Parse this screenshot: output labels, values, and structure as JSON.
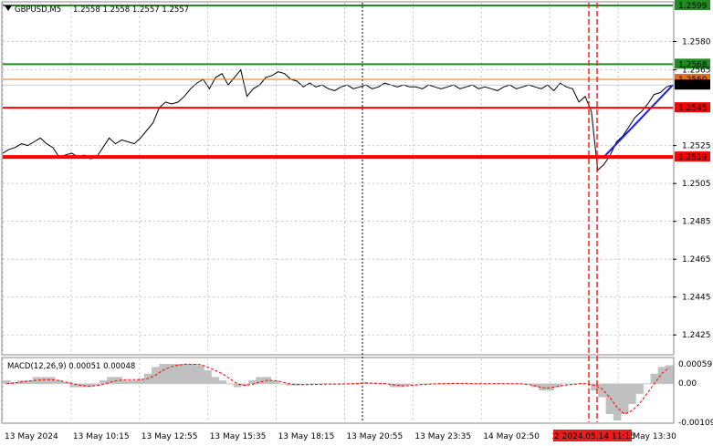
{
  "header": {
    "symbol_label": "GBPUSD,M5",
    "ohlc_label": "1.2558 1.2558 1.2557 1.2557"
  },
  "macd": {
    "label": "MACD(12,26,9) 0.00051 0.00048",
    "scale_top": "0.00059",
    "scale_zero": "0.00",
    "scale_bottom": "-0.00109",
    "histogram_color": "#c0c0c0",
    "signal_color": "#ff0000",
    "histogram": [
      0.0001,
      5e-05,
      0.0001,
      0.0001,
      0.0002,
      0.0002,
      0.0002,
      0.0001,
      5e-05,
      -0.0001,
      -0.0001,
      -0.0001,
      -5e-05,
      0.0001,
      0.0002,
      0.0002,
      0.0001,
      0.0001,
      0.00015,
      0.0003,
      0.0005,
      0.00059,
      0.00059,
      0.00059,
      0.00059,
      0.00059,
      0.00055,
      0.0004,
      0.0002,
      0.0001,
      0.0,
      -0.0001,
      -5e-05,
      0.0001,
      0.0002,
      0.0002,
      0.0001,
      0.0,
      -5e-05,
      -5e-05,
      -2e-05,
      0.0,
      0.0,
      0.0,
      -2e-05,
      0.0,
      0.0,
      2e-05,
      5e-05,
      2e-05,
      0.0,
      0.0,
      -0.0001,
      -0.0001,
      -5e-05,
      0.0,
      0.0,
      0.0,
      0.0,
      2e-05,
      2e-05,
      2e-05,
      0.0,
      0.0,
      0.0,
      0.0,
      2e-05,
      0.0,
      0.0,
      0.0,
      0.0,
      -0.0001,
      -0.0002,
      -0.0002,
      -0.0001,
      0.0,
      0.0,
      0.0,
      0.0,
      -0.0002,
      -0.0004,
      -0.0009,
      -0.00109,
      -0.0009,
      -0.0006,
      -0.0003,
      0.0,
      0.0003,
      0.0005,
      0.00055
    ],
    "signal": [
      0.0,
      2e-05,
      5e-05,
      8e-05,
      0.0001,
      0.00012,
      0.00012,
      0.0001,
      5e-05,
      0.0,
      -5e-05,
      -7e-05,
      -6e-05,
      -2e-05,
      5e-05,
      0.0001,
      0.00012,
      0.00012,
      0.00012,
      0.00015,
      0.00025,
      0.0004,
      0.0005,
      0.00055,
      0.00058,
      0.00058,
      0.00057,
      0.0005,
      0.0004,
      0.0003,
      0.00015,
      0.0,
      -5e-05,
      -2e-05,
      5e-05,
      0.0001,
      0.0001,
      5e-05,
      0.0,
      -2e-05,
      -3e-05,
      -2e-05,
      -2e-05,
      -1e-05,
      -1e-05,
      -1e-05,
      0.0,
      0.0,
      2e-05,
      2e-05,
      1e-05,
      0.0,
      -3e-05,
      -6e-05,
      -6e-05,
      -4e-05,
      -2e-05,
      -1e-05,
      0.0,
      0.0,
      1e-05,
      1e-05,
      1e-05,
      0.0,
      0.0,
      0.0,
      0.0,
      0.0,
      0.0,
      0.0,
      -2e-05,
      -6e-05,
      -0.00012,
      -0.00012,
      -8e-05,
      -4e-05,
      -2e-05,
      0.0,
      0.0,
      -5e-05,
      -0.00015,
      -0.0004,
      -0.0007,
      -0.0009,
      -0.0008,
      -0.0006,
      -0.0003,
      0.0,
      0.0003,
      0.00048
    ]
  },
  "chart_data": {
    "type": "line",
    "title": "GBPUSD,M5",
    "ylim": [
      1.2415,
      1.2599
    ],
    "y_ticks": [
      "1.2599",
      "1.2580",
      "1.2565",
      "1.2525",
      "1.2505",
      "1.2485",
      "1.2465",
      "1.2445",
      "1.2425"
    ],
    "x_ticks": [
      "13 May 2024",
      "13 May 10:15",
      "13 May 12:55",
      "13 May 15:35",
      "13 May 18:15",
      "13 May 20:55",
      "13 May 23:35",
      "14 May 02:50",
      "14 May 05:30",
      "14 May 13:30"
    ],
    "cursor_time_label": "2 2024.05.14 11:15",
    "grid": true,
    "price_series": {
      "name": "GBPUSD",
      "color": "#000000",
      "values": [
        1.2521,
        1.2523,
        1.2524,
        1.2526,
        1.2525,
        1.2527,
        1.2529,
        1.2526,
        1.2524,
        1.2519,
        1.252,
        1.2521,
        1.2519,
        1.252,
        1.2518,
        1.2519,
        1.2524,
        1.2529,
        1.2526,
        1.2528,
        1.2527,
        1.2526,
        1.2529,
        1.2533,
        1.2537,
        1.2545,
        1.2548,
        1.2547,
        1.2548,
        1.2551,
        1.2555,
        1.2558,
        1.256,
        1.2555,
        1.2561,
        1.2563,
        1.2557,
        1.2561,
        1.2565,
        1.2551,
        1.2555,
        1.2557,
        1.2561,
        1.2562,
        1.2564,
        1.2563,
        1.256,
        1.2559,
        1.2556,
        1.2558,
        1.2556,
        1.2557,
        1.2555,
        1.2554,
        1.2556,
        1.2557,
        1.2555,
        1.2556,
        1.2557,
        1.2555,
        1.2556,
        1.2558,
        1.2557,
        1.2556,
        1.2557,
        1.2556,
        1.2556,
        1.2555,
        1.2557,
        1.2556,
        1.2555,
        1.2556,
        1.2557,
        1.2555,
        1.2556,
        1.2557,
        1.2555,
        1.2556,
        1.2555,
        1.2554,
        1.2556,
        1.2557,
        1.2555,
        1.2556,
        1.2557,
        1.2556,
        1.2555,
        1.2557,
        1.2554,
        1.2558,
        1.2556,
        1.2555,
        1.2548,
        1.2551,
        1.2543,
        1.2512,
        1.2515,
        1.252,
        1.2527,
        1.253,
        1.2535,
        1.254,
        1.2543,
        1.2547,
        1.2552,
        1.2553,
        1.2556,
        1.2557
      ]
    },
    "levels": [
      {
        "price": 1.2599,
        "label": "1.2599",
        "color": "#1e8c1e"
      },
      {
        "price": 1.2568,
        "label": "1.2568",
        "color": "#1e8c1e"
      },
      {
        "price": 1.256,
        "label": "1.2560",
        "color": "#e07020"
      },
      {
        "price": 1.2557,
        "label": "1.2557",
        "color": "#000000"
      },
      {
        "price": 1.2545,
        "label": "1.2545",
        "color": "#ff0000"
      },
      {
        "price": 1.2519,
        "label": "1.2519",
        "color": "#ff0000"
      }
    ],
    "trend_line": {
      "color": "#1a1aff",
      "from": {
        "index": 96,
        "price": 1.2519
      },
      "to": {
        "index": 107,
        "price": 1.2557
      }
    }
  }
}
